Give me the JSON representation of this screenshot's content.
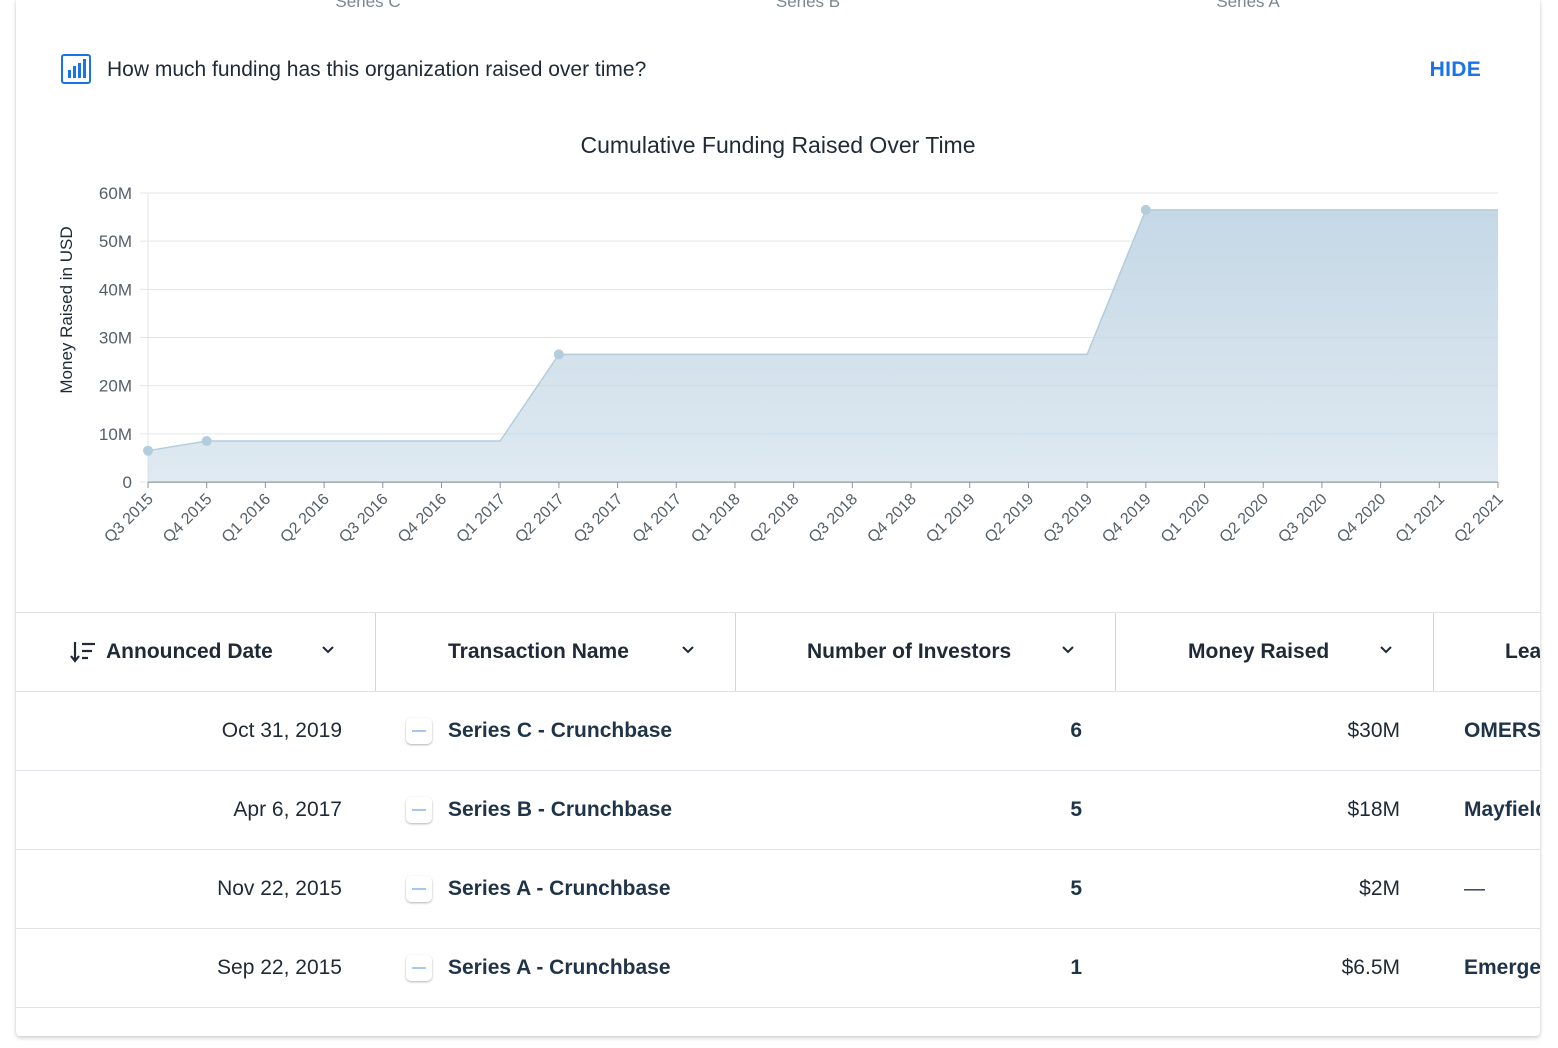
{
  "top_tabs": [
    "Series C",
    "Series B",
    "Series A"
  ],
  "question": {
    "text": "How much funding has this organization raised over time?",
    "hide_label": "HIDE"
  },
  "chart_data": {
    "type": "area",
    "title": "Cumulative Funding Raised Over Time",
    "ylabel": "Money Raised in USD",
    "xlabel": "",
    "ylim": [
      0,
      60000000
    ],
    "yticks": [
      "0",
      "10M",
      "20M",
      "30M",
      "40M",
      "50M",
      "60M"
    ],
    "categories": [
      "Q3 2015",
      "Q4 2015",
      "Q1 2016",
      "Q2 2016",
      "Q3 2016",
      "Q4 2016",
      "Q1 2017",
      "Q2 2017",
      "Q3 2017",
      "Q4 2017",
      "Q1 2018",
      "Q2 2018",
      "Q3 2018",
      "Q4 2018",
      "Q1 2019",
      "Q2 2019",
      "Q3 2019",
      "Q4 2019",
      "Q1 2020",
      "Q2 2020",
      "Q3 2020",
      "Q4 2020",
      "Q1 2021",
      "Q2 2021"
    ],
    "values": [
      6500000,
      8500000,
      8500000,
      8500000,
      8500000,
      8500000,
      8500000,
      26500000,
      26500000,
      26500000,
      26500000,
      26500000,
      26500000,
      26500000,
      26500000,
      26500000,
      26500000,
      56500000,
      56500000,
      56500000,
      56500000,
      56500000,
      56500000,
      56500000
    ],
    "markers": [
      "Q3 2015",
      "Q4 2015",
      "Q2 2017",
      "Q4 2019"
    ],
    "grid": true,
    "colors": {
      "fill": "#c5d8e6",
      "line": "#b3cddd",
      "marker": "#b3cddd",
      "grid": "#e3e6e9",
      "axis": "#8c959e"
    }
  },
  "table": {
    "columns": [
      "Announced Date",
      "Transaction Name",
      "Number of Investors",
      "Money Raised",
      "Lea"
    ],
    "rows": [
      {
        "date": "Oct 31, 2019",
        "name": "Series C - Crunchbase",
        "investors": "6",
        "money": "$30M",
        "lead": "OMERS"
      },
      {
        "date": "Apr 6, 2017",
        "name": "Series B - Crunchbase",
        "investors": "5",
        "money": "$18M",
        "lead": "Mayfield"
      },
      {
        "date": "Nov 22, 2015",
        "name": "Series A - Crunchbase",
        "investors": "5",
        "money": "$2M",
        "lead": "—"
      },
      {
        "date": "Sep 22, 2015",
        "name": "Series A - Crunchbase",
        "investors": "1",
        "money": "$6.5M",
        "lead": "Emergence"
      }
    ]
  }
}
